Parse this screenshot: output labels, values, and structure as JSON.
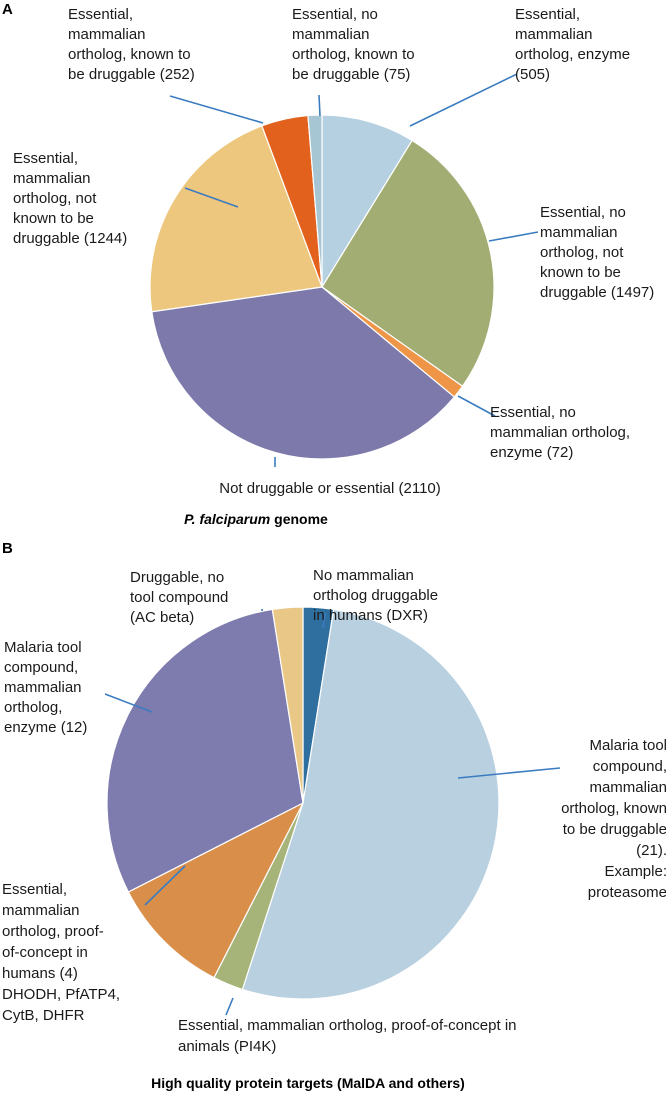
{
  "chart_data": [
    {
      "type": "pie",
      "panel": "A",
      "caption_italic": "P. falciparum",
      "caption_rest": " genome",
      "slices": [
        {
          "label": [
            "Essential,",
            "mammalian",
            "ortholog, enzyme",
            "(505)"
          ],
          "value": 505,
          "color": "#b5d0e0"
        },
        {
          "label": [
            "Essential, no",
            "mammalian",
            "ortholog, not",
            "known to be",
            "druggable (1497)"
          ],
          "value": 1497,
          "color": "#a1ad73"
        },
        {
          "label": [
            "Essential, no",
            "mammalian ortholog,",
            "enzyme (72)"
          ],
          "value": 72,
          "color": "#ef9547"
        },
        {
          "label": [
            "Not druggable or essential (2110)"
          ],
          "value": 2110,
          "color": "#7d7aab"
        },
        {
          "label": [
            "Essential,",
            "mammalian",
            "ortholog, not",
            "known to be",
            "druggable (1244)"
          ],
          "value": 1244,
          "color": "#eec77f"
        },
        {
          "label": [
            "Essential,",
            "mammalian",
            "ortholog, known to",
            "be druggable (252)"
          ],
          "value": 252,
          "color": "#e2611d"
        },
        {
          "label": [
            "Essential, no",
            "mammalian",
            "ortholog, known to",
            "be druggable (75)"
          ],
          "value": 75,
          "color": "#a7c6d3"
        }
      ]
    },
    {
      "type": "pie",
      "panel": "B",
      "caption": "High quality protein targets (MalDA and others)",
      "slices": [
        {
          "label": [
            "No mammalian",
            "ortholog druggable",
            "in humans (DXR)"
          ],
          "value": 1,
          "color": "#2f6fa0"
        },
        {
          "label": [
            "Malaria tool",
            "compound,",
            "mammalian",
            "ortholog, known",
            "to be druggable",
            "(21).",
            "Example:",
            "proteasome"
          ],
          "value": 21,
          "color": "#b9d0e0"
        },
        {
          "label": [
            "Essential, mammalian ortholog, proof-of-concept in",
            "animals (PI4K)"
          ],
          "value": 1,
          "color": "#a6b47a"
        },
        {
          "label": [
            "Essential,",
            "mammalian",
            "ortholog, proof-",
            "of-concept in",
            "humans (4)",
            "DHODH, PfATP4,",
            "CytB, DHFR"
          ],
          "value": 4,
          "color": "#d98f4a"
        },
        {
          "label": [
            "Malaria tool",
            "compound,",
            "mammalian",
            "ortholog,",
            "enzyme (12)"
          ],
          "value": 12,
          "color": "#7e7bae"
        },
        {
          "label": [
            "Druggable, no",
            "tool compound",
            "(AC beta)"
          ],
          "value": 1,
          "color": "#e8c787"
        }
      ]
    }
  ]
}
